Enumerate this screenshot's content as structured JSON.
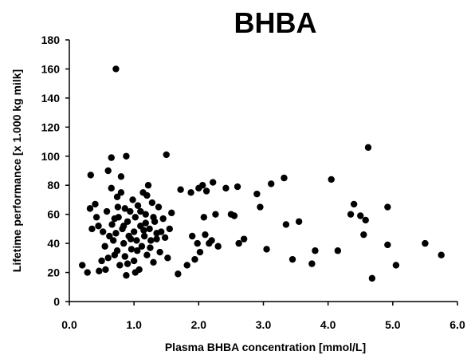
{
  "chart_data": {
    "type": "scatter",
    "title": "BHBA",
    "xlabel": "Plasma BHBA concentration [mmol/L]",
    "ylabel": "Lifetime performance [x 1.000 kg milk]",
    "xlim": [
      0,
      6
    ],
    "ylim": [
      0,
      180
    ],
    "x_ticks": [
      "0.0",
      "1.0",
      "2.0",
      "3.0",
      "4.0",
      "5.0",
      "6.0"
    ],
    "y_ticks": [
      "0",
      "20",
      "40",
      "60",
      "80",
      "100",
      "120",
      "140",
      "160",
      "180"
    ],
    "grid": false,
    "marker_color": "#000000",
    "points": [
      {
        "x": 0.72,
        "y": 160
      },
      {
        "x": 0.33,
        "y": 87
      },
      {
        "x": 0.28,
        "y": 20
      },
      {
        "x": 0.2,
        "y": 25
      },
      {
        "x": 0.32,
        "y": 64
      },
      {
        "x": 0.35,
        "y": 50
      },
      {
        "x": 0.4,
        "y": 67
      },
      {
        "x": 0.42,
        "y": 58
      },
      {
        "x": 0.45,
        "y": 52
      },
      {
        "x": 0.5,
        "y": 28
      },
      {
        "x": 0.55,
        "y": 38
      },
      {
        "x": 0.58,
        "y": 62
      },
      {
        "x": 0.6,
        "y": 90
      },
      {
        "x": 0.6,
        "y": 30
      },
      {
        "x": 0.62,
        "y": 45
      },
      {
        "x": 0.65,
        "y": 78
      },
      {
        "x": 0.65,
        "y": 99
      },
      {
        "x": 0.66,
        "y": 53
      },
      {
        "x": 0.68,
        "y": 42
      },
      {
        "x": 0.7,
        "y": 57
      },
      {
        "x": 0.72,
        "y": 47
      },
      {
        "x": 0.74,
        "y": 35
      },
      {
        "x": 0.75,
        "y": 65
      },
      {
        "x": 0.78,
        "y": 25
      },
      {
        "x": 0.8,
        "y": 86
      },
      {
        "x": 0.8,
        "y": 75
      },
      {
        "x": 0.82,
        "y": 50
      },
      {
        "x": 0.84,
        "y": 40
      },
      {
        "x": 0.86,
        "y": 31
      },
      {
        "x": 0.88,
        "y": 100
      },
      {
        "x": 0.88,
        "y": 18
      },
      {
        "x": 0.9,
        "y": 55
      },
      {
        "x": 0.92,
        "y": 45
      },
      {
        "x": 0.94,
        "y": 62
      },
      {
        "x": 0.96,
        "y": 36
      },
      {
        "x": 0.98,
        "y": 70
      },
      {
        "x": 1.0,
        "y": 48
      },
      {
        "x": 1.0,
        "y": 28
      },
      {
        "x": 1.02,
        "y": 58
      },
      {
        "x": 1.04,
        "y": 42
      },
      {
        "x": 1.06,
        "y": 66
      },
      {
        "x": 1.08,
        "y": 22
      },
      {
        "x": 1.1,
        "y": 52
      },
      {
        "x": 1.12,
        "y": 38
      },
      {
        "x": 1.14,
        "y": 75
      },
      {
        "x": 1.16,
        "y": 45
      },
      {
        "x": 1.18,
        "y": 60
      },
      {
        "x": 1.2,
        "y": 32
      },
      {
        "x": 1.22,
        "y": 80
      },
      {
        "x": 1.24,
        "y": 50
      },
      {
        "x": 1.26,
        "y": 42
      },
      {
        "x": 1.28,
        "y": 68
      },
      {
        "x": 1.3,
        "y": 27
      },
      {
        "x": 1.32,
        "y": 55
      },
      {
        "x": 1.35,
        "y": 47
      },
      {
        "x": 1.38,
        "y": 65
      },
      {
        "x": 1.4,
        "y": 34
      },
      {
        "x": 1.45,
        "y": 57
      },
      {
        "x": 1.48,
        "y": 44
      },
      {
        "x": 1.5,
        "y": 101
      },
      {
        "x": 1.52,
        "y": 30
      },
      {
        "x": 1.55,
        "y": 50
      },
      {
        "x": 1.58,
        "y": 61
      },
      {
        "x": 1.68,
        "y": 19
      },
      {
        "x": 1.72,
        "y": 77
      },
      {
        "x": 1.82,
        "y": 25
      },
      {
        "x": 1.88,
        "y": 75
      },
      {
        "x": 1.9,
        "y": 45
      },
      {
        "x": 1.94,
        "y": 29
      },
      {
        "x": 1.98,
        "y": 40
      },
      {
        "x": 2.0,
        "y": 78
      },
      {
        "x": 2.02,
        "y": 34
      },
      {
        "x": 2.06,
        "y": 80
      },
      {
        "x": 2.08,
        "y": 58
      },
      {
        "x": 2.1,
        "y": 46
      },
      {
        "x": 2.12,
        "y": 76
      },
      {
        "x": 2.16,
        "y": 40
      },
      {
        "x": 2.2,
        "y": 42
      },
      {
        "x": 2.22,
        "y": 82
      },
      {
        "x": 2.26,
        "y": 60
      },
      {
        "x": 2.3,
        "y": 38
      },
      {
        "x": 2.42,
        "y": 78
      },
      {
        "x": 2.5,
        "y": 60
      },
      {
        "x": 2.55,
        "y": 59
      },
      {
        "x": 2.6,
        "y": 79
      },
      {
        "x": 2.62,
        "y": 40
      },
      {
        "x": 2.7,
        "y": 43
      },
      {
        "x": 2.9,
        "y": 74
      },
      {
        "x": 2.95,
        "y": 65
      },
      {
        "x": 3.05,
        "y": 36
      },
      {
        "x": 3.12,
        "y": 81
      },
      {
        "x": 3.32,
        "y": 85
      },
      {
        "x": 3.35,
        "y": 53
      },
      {
        "x": 3.45,
        "y": 29
      },
      {
        "x": 3.55,
        "y": 55
      },
      {
        "x": 3.75,
        "y": 26
      },
      {
        "x": 3.8,
        "y": 35
      },
      {
        "x": 4.05,
        "y": 84
      },
      {
        "x": 4.15,
        "y": 35
      },
      {
        "x": 4.35,
        "y": 60
      },
      {
        "x": 4.4,
        "y": 67
      },
      {
        "x": 4.5,
        "y": 59
      },
      {
        "x": 4.55,
        "y": 46
      },
      {
        "x": 4.58,
        "y": 56
      },
      {
        "x": 4.62,
        "y": 106
      },
      {
        "x": 4.68,
        "y": 16
      },
      {
        "x": 4.92,
        "y": 65
      },
      {
        "x": 4.92,
        "y": 39
      },
      {
        "x": 5.05,
        "y": 25
      },
      {
        "x": 5.5,
        "y": 40
      },
      {
        "x": 5.75,
        "y": 32
      },
      {
        "x": 0.7,
        "y": 32
      },
      {
        "x": 0.76,
        "y": 58
      },
      {
        "x": 0.84,
        "y": 52
      },
      {
        "x": 0.9,
        "y": 26
      },
      {
        "x": 0.95,
        "y": 43
      },
      {
        "x": 1.05,
        "y": 35
      },
      {
        "x": 1.1,
        "y": 62
      },
      {
        "x": 1.15,
        "y": 49
      },
      {
        "x": 1.2,
        "y": 73
      },
      {
        "x": 1.25,
        "y": 37
      },
      {
        "x": 1.3,
        "y": 58
      },
      {
        "x": 1.35,
        "y": 43
      },
      {
        "x": 0.52,
        "y": 48
      },
      {
        "x": 0.56,
        "y": 22
      },
      {
        "x": 0.74,
        "y": 72
      },
      {
        "x": 0.86,
        "y": 64
      },
      {
        "x": 1.02,
        "y": 20
      },
      {
        "x": 1.18,
        "y": 54
      },
      {
        "x": 1.42,
        "y": 48
      },
      {
        "x": 0.46,
        "y": 21
      }
    ]
  }
}
